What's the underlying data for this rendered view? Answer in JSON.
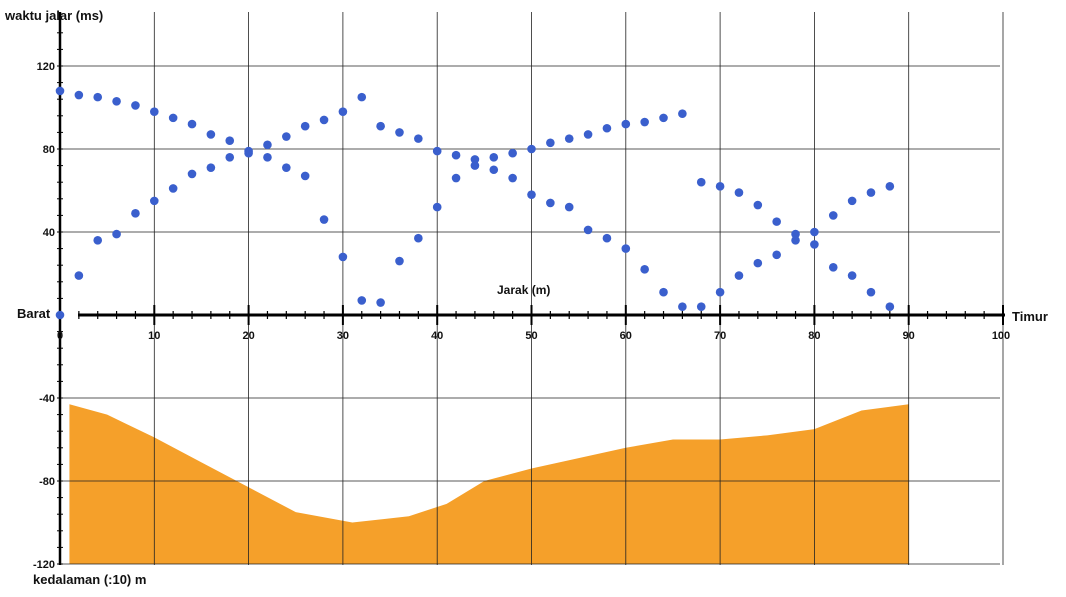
{
  "chart_data": {
    "type": "scatter",
    "title": "",
    "ylabel_top": "waktu jalar (ms)",
    "xlabel": "Jarak (m)",
    "ylabel_bottom": "kedalaman (:10) m",
    "left_label": "Barat",
    "right_label": "Timur",
    "xlim": [
      0,
      100
    ],
    "ylim": [
      -120,
      140
    ],
    "x_ticks": [
      0,
      10,
      20,
      30,
      40,
      50,
      60,
      70,
      80,
      90,
      100
    ],
    "x_tick_labels": [
      "0",
      "10",
      "20",
      "30",
      "40",
      "50",
      "60",
      "70",
      "80",
      "90",
      "100"
    ],
    "y_ticks": [
      120,
      80,
      40,
      -40,
      -80,
      -120
    ],
    "y_tick_labels": [
      "120",
      "80",
      "40",
      "-40",
      "-80",
      "-120"
    ],
    "grid": true,
    "colors": {
      "points": "#3a5fcd",
      "area": "#f5a02a",
      "grid": "#222222"
    },
    "series": [
      {
        "type": "scatter",
        "points": [
          [
            0,
            108
          ],
          [
            2,
            106
          ],
          [
            4,
            105
          ],
          [
            6,
            103
          ],
          [
            8,
            101
          ],
          [
            10,
            98
          ],
          [
            12,
            95
          ],
          [
            14,
            92
          ],
          [
            16,
            87
          ],
          [
            18,
            84
          ],
          [
            20,
            79
          ],
          [
            22,
            76
          ],
          [
            24,
            71
          ],
          [
            26,
            67
          ],
          [
            28,
            46
          ],
          [
            30,
            28
          ],
          [
            32,
            7
          ],
          [
            34,
            6
          ],
          [
            0,
            0
          ],
          [
            2,
            19
          ],
          [
            4,
            36
          ],
          [
            6,
            39
          ],
          [
            8,
            49
          ],
          [
            10,
            55
          ],
          [
            12,
            61
          ],
          [
            14,
            68
          ],
          [
            16,
            71
          ],
          [
            18,
            76
          ],
          [
            20,
            78
          ],
          [
            22,
            82
          ],
          [
            24,
            86
          ],
          [
            26,
            91
          ],
          [
            28,
            94
          ],
          [
            30,
            98
          ],
          [
            32,
            105
          ],
          [
            34,
            91
          ],
          [
            36,
            88
          ],
          [
            38,
            85
          ],
          [
            40,
            79
          ],
          [
            42,
            77
          ],
          [
            44,
            75
          ],
          [
            46,
            70
          ],
          [
            48,
            66
          ],
          [
            50,
            58
          ],
          [
            52,
            54
          ],
          [
            54,
            52
          ],
          [
            56,
            41
          ],
          [
            58,
            37
          ],
          [
            60,
            32
          ],
          [
            62,
            22
          ],
          [
            64,
            11
          ],
          [
            66,
            4
          ],
          [
            68,
            4
          ],
          [
            36,
            26
          ],
          [
            38,
            37
          ],
          [
            40,
            52
          ],
          [
            42,
            66
          ],
          [
            44,
            72
          ],
          [
            46,
            76
          ],
          [
            48,
            78
          ],
          [
            50,
            80
          ],
          [
            52,
            83
          ],
          [
            54,
            85
          ],
          [
            56,
            87
          ],
          [
            58,
            90
          ],
          [
            60,
            92
          ],
          [
            62,
            93
          ],
          [
            64,
            95
          ],
          [
            66,
            97
          ],
          [
            68,
            64
          ],
          [
            70,
            62
          ],
          [
            72,
            59
          ],
          [
            74,
            53
          ],
          [
            76,
            45
          ],
          [
            78,
            39
          ],
          [
            80,
            34
          ],
          [
            82,
            23
          ],
          [
            84,
            19
          ],
          [
            86,
            11
          ],
          [
            88,
            4
          ],
          [
            70,
            11
          ],
          [
            72,
            19
          ],
          [
            74,
            25
          ],
          [
            76,
            29
          ],
          [
            78,
            36
          ],
          [
            80,
            40
          ],
          [
            82,
            48
          ],
          [
            84,
            55
          ],
          [
            86,
            59
          ],
          [
            88,
            62
          ]
        ]
      },
      {
        "type": "area",
        "name": "",
        "x": [
          1,
          5,
          10,
          15,
          20,
          25,
          31,
          37,
          41,
          45,
          50,
          55,
          60,
          65,
          70,
          75,
          80,
          85,
          90
        ],
        "y": [
          -43,
          -48,
          -59,
          -71,
          -83,
          -95,
          -100,
          -97,
          -91,
          -80,
          -74,
          -69,
          -64,
          -60,
          -60,
          -58,
          -55,
          -46,
          -43
        ]
      }
    ]
  }
}
